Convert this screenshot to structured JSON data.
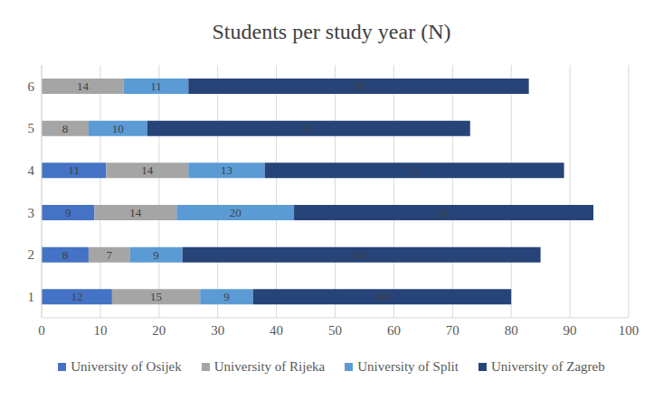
{
  "chart_data": {
    "type": "bar",
    "title": "Students per study year (N)",
    "orientation": "horizontal",
    "stacked": true,
    "data_labels": true,
    "grid": true,
    "legend": "bottom",
    "categories": [
      "1",
      "2",
      "3",
      "4",
      "5",
      "6"
    ],
    "xlim": [
      0,
      100
    ],
    "xticks": [
      0,
      10,
      20,
      30,
      40,
      50,
      60,
      70,
      80,
      90,
      100
    ],
    "series": [
      {
        "name": "University of Osijek",
        "color": "#4472c4",
        "values": [
          12,
          8,
          9,
          11,
          null,
          null
        ]
      },
      {
        "name": "University of Rijeka",
        "color": "#a5a5a5",
        "values": [
          15,
          7,
          14,
          14,
          8,
          14
        ]
      },
      {
        "name": "University of Split",
        "color": "#5b9bd5",
        "values": [
          9,
          9,
          20,
          13,
          10,
          11
        ]
      },
      {
        "name": "University of Zagreb",
        "color": "#264478",
        "values": [
          44,
          61,
          51,
          51,
          55,
          58
        ]
      }
    ]
  }
}
